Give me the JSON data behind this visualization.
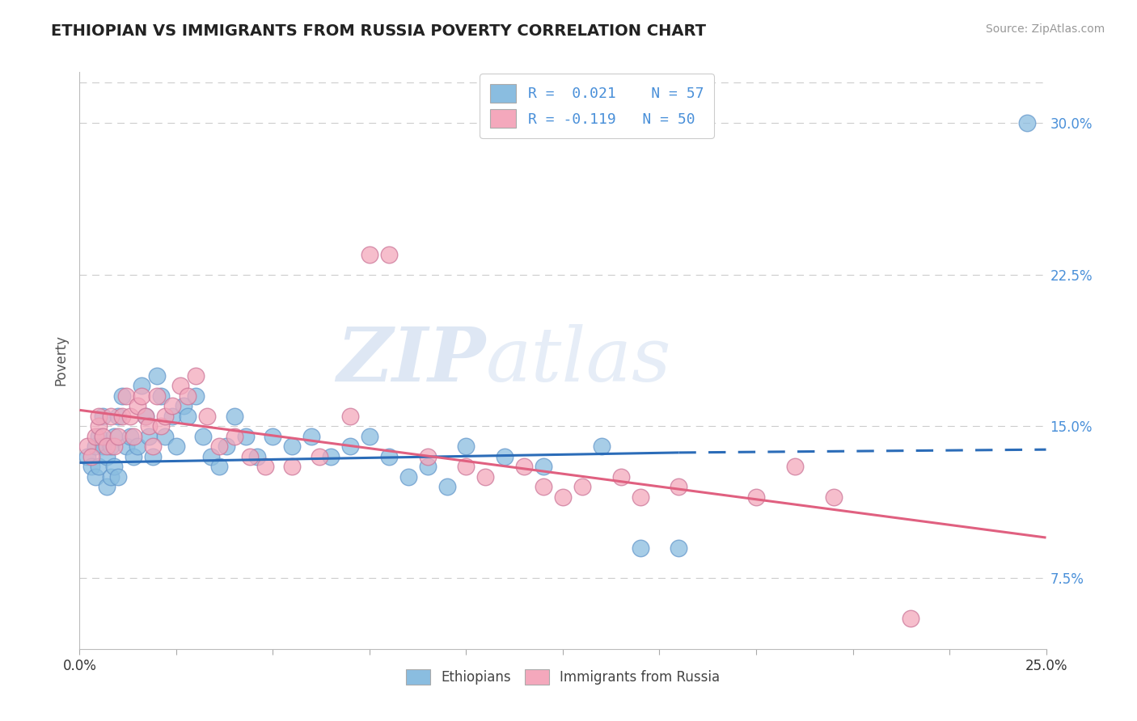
{
  "title": "ETHIOPIAN VS IMMIGRANTS FROM RUSSIA POVERTY CORRELATION CHART",
  "source_text": "Source: ZipAtlas.com",
  "ylabel": "Poverty",
  "xlim": [
    0.0,
    0.25
  ],
  "ylim": [
    0.04,
    0.325
  ],
  "xticks": [
    0.0,
    0.025,
    0.05,
    0.075,
    0.1,
    0.125,
    0.15,
    0.175,
    0.2,
    0.225,
    0.25
  ],
  "xtick_labels_show": [
    "0.0%",
    "",
    "",
    "",
    "",
    "",
    "",
    "",
    "",
    "",
    "25.0%"
  ],
  "yticks_right": [
    0.075,
    0.15,
    0.225,
    0.3
  ],
  "ytick_labels_right": [
    "7.5%",
    "15.0%",
    "22.5%",
    "30.0%"
  ],
  "legend_label1": "Ethiopians",
  "legend_label2": "Immigrants from Russia",
  "watermark_zip": "ZIP",
  "watermark_atlas": "atlas",
  "blue_color": "#8abde0",
  "pink_color": "#f4a8bc",
  "blue_line_color": "#2b6cb8",
  "pink_line_color": "#e06080",
  "title_color": "#222222",
  "title_fontsize": 14,
  "tick_color_blue": "#4a90d9",
  "ethiopians_x": [
    0.002,
    0.003,
    0.004,
    0.004,
    0.005,
    0.005,
    0.006,
    0.006,
    0.007,
    0.007,
    0.008,
    0.008,
    0.009,
    0.009,
    0.01,
    0.01,
    0.011,
    0.012,
    0.013,
    0.014,
    0.015,
    0.016,
    0.017,
    0.018,
    0.019,
    0.02,
    0.021,
    0.022,
    0.024,
    0.025,
    0.027,
    0.028,
    0.03,
    0.032,
    0.034,
    0.036,
    0.038,
    0.04,
    0.043,
    0.046,
    0.05,
    0.055,
    0.06,
    0.065,
    0.07,
    0.075,
    0.08,
    0.085,
    0.09,
    0.095,
    0.1,
    0.11,
    0.12,
    0.135,
    0.145,
    0.155,
    0.245
  ],
  "ethiopians_y": [
    0.135,
    0.13,
    0.14,
    0.125,
    0.145,
    0.13,
    0.155,
    0.14,
    0.135,
    0.12,
    0.14,
    0.125,
    0.145,
    0.13,
    0.155,
    0.125,
    0.165,
    0.14,
    0.145,
    0.135,
    0.14,
    0.17,
    0.155,
    0.145,
    0.135,
    0.175,
    0.165,
    0.145,
    0.155,
    0.14,
    0.16,
    0.155,
    0.165,
    0.145,
    0.135,
    0.13,
    0.14,
    0.155,
    0.145,
    0.135,
    0.145,
    0.14,
    0.145,
    0.135,
    0.14,
    0.145,
    0.135,
    0.125,
    0.13,
    0.12,
    0.14,
    0.135,
    0.13,
    0.14,
    0.09,
    0.09,
    0.3
  ],
  "russia_x": [
    0.002,
    0.003,
    0.004,
    0.005,
    0.005,
    0.006,
    0.007,
    0.008,
    0.009,
    0.01,
    0.011,
    0.012,
    0.013,
    0.014,
    0.015,
    0.016,
    0.017,
    0.018,
    0.019,
    0.02,
    0.021,
    0.022,
    0.024,
    0.026,
    0.028,
    0.03,
    0.033,
    0.036,
    0.04,
    0.044,
    0.048,
    0.055,
    0.062,
    0.07,
    0.075,
    0.08,
    0.09,
    0.1,
    0.105,
    0.115,
    0.12,
    0.125,
    0.13,
    0.14,
    0.145,
    0.155,
    0.175,
    0.185,
    0.195,
    0.215
  ],
  "russia_y": [
    0.14,
    0.135,
    0.145,
    0.15,
    0.155,
    0.145,
    0.14,
    0.155,
    0.14,
    0.145,
    0.155,
    0.165,
    0.155,
    0.145,
    0.16,
    0.165,
    0.155,
    0.15,
    0.14,
    0.165,
    0.15,
    0.155,
    0.16,
    0.17,
    0.165,
    0.175,
    0.155,
    0.14,
    0.145,
    0.135,
    0.13,
    0.13,
    0.135,
    0.155,
    0.235,
    0.235,
    0.135,
    0.13,
    0.125,
    0.13,
    0.12,
    0.115,
    0.12,
    0.125,
    0.115,
    0.12,
    0.115,
    0.13,
    0.115,
    0.055
  ],
  "eth_trend_x0": 0.0,
  "eth_trend_x1": 0.155,
  "eth_trend_x2": 0.25,
  "eth_trend_y0": 0.132,
  "eth_trend_y1": 0.137,
  "eth_trend_y2": 0.1385,
  "rus_trend_x0": 0.0,
  "rus_trend_x1": 0.25,
  "rus_trend_y0": 0.158,
  "rus_trend_y1": 0.095
}
